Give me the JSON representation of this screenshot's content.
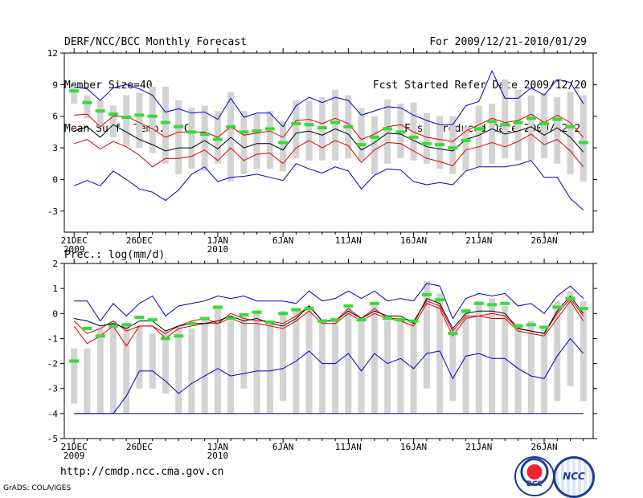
{
  "header": {
    "title": "DERF/NCC/BCC Monthly Forecast",
    "member_size": "Member Size=40",
    "variable": "Mean Surf. Temp.: °C",
    "period": "For 2009/12/21-2010/01/29",
    "started": "Fcst Started Refer Date 2009/12/20",
    "produced": "Fcst Produced Date 2009/12/21"
  },
  "footer": {
    "url": "http://cmdp.ncc.cma.gov.cn",
    "grads": "GrADS: COLA/IGES",
    "logo_bcc": "BCC",
    "logo_ncc": "NCC"
  },
  "colors": {
    "mean": "#000000",
    "spread": "#e00000",
    "extreme": "#0000cc",
    "box": "#d3d3d3",
    "median": "#33dd33",
    "hline": "#000080"
  },
  "chart_data": [
    {
      "type": "line",
      "name": "temperature",
      "title": "Mean Surf. Temp.: °C",
      "ylabel": "°C",
      "ylim": [
        -5,
        12
      ],
      "yticks": [
        -3,
        0,
        3,
        6,
        9,
        12
      ],
      "xlabels": [
        {
          "day": 1,
          "lines": [
            "21DEC",
            "2009"
          ]
        },
        {
          "day": 6,
          "lines": [
            "26DEC"
          ]
        },
        {
          "day": 12,
          "lines": [
            "1JAN",
            "2010"
          ]
        },
        {
          "day": 17,
          "lines": [
            "6JAN"
          ]
        },
        {
          "day": 22,
          "lines": [
            "11JAN"
          ]
        },
        {
          "day": 27,
          "lines": [
            "16JAN"
          ]
        },
        {
          "day": 32,
          "lines": [
            "21JAN"
          ]
        },
        {
          "day": 37,
          "lines": [
            "26JAN"
          ]
        }
      ],
      "days": 40,
      "box_low": [
        7.2,
        5.8,
        5.0,
        4.0,
        3.2,
        3.0,
        2.5,
        1.5,
        0.5,
        1.0,
        0.8,
        1.5,
        -0.2,
        0.5,
        1.0,
        1.0,
        0.8,
        2.0,
        1.8,
        1.8,
        1.8,
        2.0,
        1.8,
        0.5,
        1.5,
        2.0,
        1.8,
        1.5,
        1.0,
        0.5,
        0.8,
        1.2,
        1.5,
        2.0,
        1.8,
        1.8,
        2.0,
        1.5,
        0.5,
        -0.2
      ],
      "box_high": [
        8.8,
        8.0,
        7.5,
        7.0,
        8.0,
        8.2,
        8.8,
        8.8,
        7.5,
        6.8,
        7.0,
        6.5,
        8.3,
        6.5,
        6.2,
        6.5,
        5.5,
        7.5,
        7.5,
        7.8,
        8.5,
        8.0,
        6.8,
        6.0,
        7.6,
        7.2,
        7.3,
        6.3,
        6.0,
        6.0,
        5.0,
        7.0,
        7.2,
        9.5,
        8.5,
        8.0,
        8.2,
        7.8,
        8.3,
        8.0
      ],
      "median": [
        8.4,
        7.3,
        6.5,
        6.2,
        5.9,
        6.1,
        6.0,
        5.4,
        5.0,
        4.5,
        4.3,
        3.8,
        5.0,
        4.5,
        4.6,
        4.8,
        3.5,
        5.3,
        5.2,
        4.9,
        5.4,
        5.0,
        3.3,
        4.0,
        4.8,
        4.5,
        4.0,
        3.4,
        3.3,
        3.0,
        3.7,
        4.8,
        5.5,
        5.2,
        5.4,
        5.8,
        5.3,
        5.7,
        5.0,
        3.5
      ],
      "mean": [
        4.6,
        5.0,
        4.0,
        5.2,
        4.5,
        3.8,
        3.3,
        2.7,
        3.0,
        3.0,
        3.7,
        2.9,
        4.0,
        3.0,
        3.4,
        3.4,
        2.8,
        4.4,
        4.6,
        4.2,
        4.8,
        4.3,
        2.8,
        3.5,
        4.4,
        4.3,
        3.7,
        3.1,
        2.9,
        2.7,
        3.8,
        4.2,
        4.8,
        4.3,
        4.6,
        5.0,
        4.2,
        4.9,
        4.0,
        2.6
      ],
      "upper": [
        6.1,
        6.2,
        5.0,
        6.0,
        6.0,
        5.4,
        4.8,
        4.0,
        4.5,
        4.5,
        4.5,
        4.0,
        5.0,
        4.2,
        4.4,
        4.6,
        4.0,
        5.6,
        5.7,
        5.3,
        5.8,
        5.3,
        3.8,
        4.3,
        5.0,
        5.2,
        4.5,
        4.0,
        3.8,
        3.6,
        4.6,
        5.2,
        5.8,
        5.4,
        5.6,
        6.2,
        5.4,
        6.1,
        5.4,
        4.0
      ],
      "lower": [
        3.4,
        3.8,
        2.9,
        3.6,
        3.1,
        2.3,
        1.2,
        2.0,
        2.0,
        2.2,
        2.8,
        1.8,
        3.0,
        1.8,
        2.4,
        2.5,
        1.5,
        3.0,
        3.7,
        3.0,
        3.7,
        3.2,
        1.6,
        2.8,
        3.5,
        3.4,
        2.7,
        2.0,
        1.7,
        1.3,
        2.8,
        3.1,
        3.5,
        3.1,
        3.6,
        4.3,
        3.3,
        3.8,
        2.7,
        1.2
      ],
      "max": [
        8.8,
        8.6,
        7.5,
        8.7,
        9.0,
        8.6,
        8.0,
        6.4,
        6.7,
        6.3,
        6.4,
        5.7,
        7.7,
        5.9,
        6.3,
        6.3,
        5.0,
        7.0,
        7.8,
        7.3,
        7.8,
        7.5,
        6.1,
        6.5,
        6.9,
        6.8,
        6.1,
        5.6,
        5.2,
        5.2,
        7.0,
        7.4,
        10.3,
        7.7,
        7.7,
        8.7,
        8.0,
        9.5,
        9.2,
        7.2
      ],
      "min": [
        -0.6,
        -0.1,
        -0.6,
        0.8,
        0.0,
        -0.9,
        -1.2,
        -2.0,
        -1.0,
        0.5,
        1.2,
        -0.2,
        0.2,
        0.3,
        0.5,
        0.2,
        -0.1,
        1.5,
        1.0,
        0.6,
        1.2,
        0.8,
        -0.9,
        0.4,
        1.0,
        0.9,
        -0.2,
        -0.5,
        -0.3,
        -0.5,
        0.8,
        1.2,
        1.2,
        1.2,
        1.4,
        1.8,
        0.2,
        0.2,
        -1.8,
        -2.9
      ]
    },
    {
      "type": "line",
      "name": "precipitation",
      "title": "Prec.: log(mm/d)",
      "ylabel": "log(mm/d)",
      "ylim": [
        -5,
        2
      ],
      "yticks": [
        -5,
        -4,
        -3,
        -2,
        -1,
        0,
        1,
        2
      ],
      "xlabels": [
        {
          "day": 1,
          "lines": [
            "21DEC",
            "2009"
          ]
        },
        {
          "day": 6,
          "lines": [
            "26DEC"
          ]
        },
        {
          "day": 12,
          "lines": [
            "1JAN",
            "2010"
          ]
        },
        {
          "day": 17,
          "lines": [
            "6JAN"
          ]
        },
        {
          "day": 22,
          "lines": [
            "11JAN"
          ]
        },
        {
          "day": 27,
          "lines": [
            "16JAN"
          ]
        },
        {
          "day": 32,
          "lines": [
            "21JAN"
          ]
        },
        {
          "day": 37,
          "lines": [
            "26JAN"
          ]
        }
      ],
      "days": 40,
      "baseline": -4,
      "box_low": [
        -3.6,
        -4.0,
        -4.0,
        -4.0,
        -4.0,
        -3.0,
        -3.0,
        -3.2,
        -4.0,
        -4.0,
        -4.0,
        -4.0,
        -4.0,
        -3.0,
        -4.0,
        -4.0,
        -3.5,
        -4.0,
        -4.0,
        -4.0,
        -4.0,
        -4.0,
        -4.0,
        -4.0,
        -4.0,
        -4.0,
        -4.0,
        -3.0,
        -4.0,
        -3.5,
        -4.0,
        -4.0,
        -4.0,
        -4.0,
        -4.0,
        -4.0,
        -4.0,
        -3.5,
        -2.9,
        -3.5
      ],
      "box_high": [
        -1.4,
        -1.4,
        -0.6,
        -0.3,
        -0.4,
        -0.5,
        -0.8,
        -0.7,
        -0.5,
        -0.6,
        -0.2,
        0.3,
        -0.3,
        0.0,
        0.1,
        -0.4,
        0.1,
        0.2,
        0.3,
        -0.3,
        -0.3,
        0.3,
        -0.2,
        0.4,
        -0.3,
        -0.3,
        -0.3,
        1.3,
        0.8,
        -0.6,
        0.2,
        0.5,
        0.6,
        0.3,
        -0.4,
        -0.3,
        -0.5,
        0.5,
        0.9,
        0.5
      ],
      "median": [
        -1.9,
        -0.6,
        -0.9,
        -0.5,
        -0.45,
        -0.15,
        -0.25,
        -1.0,
        -0.9,
        -0.4,
        -0.2,
        0.25,
        -0.2,
        -0.05,
        0.05,
        -0.35,
        0.0,
        0.15,
        0.2,
        -0.3,
        -0.25,
        0.3,
        -0.25,
        0.4,
        -0.2,
        -0.25,
        -0.3,
        0.75,
        0.55,
        -0.8,
        0.1,
        0.4,
        0.35,
        0.4,
        -0.5,
        -0.45,
        -0.55,
        0.25,
        0.6,
        0.2
      ],
      "mean": [
        -0.2,
        -0.3,
        -0.5,
        -0.4,
        -0.6,
        -0.3,
        -0.3,
        -0.7,
        -0.5,
        -0.4,
        -0.4,
        -0.3,
        -0.1,
        -0.3,
        -0.2,
        -0.4,
        -0.5,
        -0.2,
        0.3,
        -0.3,
        -0.3,
        0.1,
        -0.2,
        0.1,
        -0.1,
        -0.1,
        -0.4,
        0.6,
        0.4,
        -0.6,
        0.0,
        0.1,
        0.1,
        0.0,
        -0.6,
        -0.7,
        -0.8,
        0.1,
        0.7,
        0.0
      ],
      "upper": [
        -0.3,
        -0.8,
        -0.6,
        -0.3,
        -0.7,
        -0.5,
        -0.5,
        -0.8,
        -0.5,
        -0.3,
        -0.2,
        -0.4,
        0.0,
        -0.2,
        -0.3,
        -0.3,
        -0.4,
        -0.1,
        0.3,
        -0.3,
        -0.3,
        0.2,
        -0.2,
        0.2,
        -0.2,
        -0.2,
        -0.3,
        0.5,
        0.3,
        -0.7,
        -0.1,
        -0.1,
        0.0,
        -0.1,
        -0.6,
        -0.7,
        -0.8,
        0.0,
        0.6,
        -0.1
      ],
      "lower": [
        -0.5,
        -1.2,
        -0.9,
        -0.5,
        -1.3,
        -0.5,
        -0.5,
        -1.0,
        -0.6,
        -0.5,
        -0.4,
        -0.4,
        -0.2,
        -0.4,
        -0.4,
        -0.5,
        -0.6,
        -0.3,
        0.1,
        -0.4,
        -0.4,
        0.0,
        -0.3,
        0.0,
        -0.2,
        -0.3,
        -0.5,
        0.4,
        0.2,
        -0.9,
        -0.2,
        -0.1,
        -0.2,
        -0.2,
        -0.7,
        -0.8,
        -0.9,
        -0.2,
        0.5,
        -0.3
      ],
      "max": [
        0.5,
        0.5,
        -0.3,
        0.4,
        -0.1,
        0.4,
        0.7,
        -0.1,
        0.3,
        0.4,
        0.5,
        0.7,
        0.6,
        0.7,
        0.5,
        0.5,
        0.5,
        0.4,
        0.9,
        0.5,
        0.6,
        0.9,
        0.6,
        0.9,
        0.5,
        0.6,
        0.5,
        1.2,
        1.1,
        -0.2,
        0.6,
        0.8,
        0.7,
        0.8,
        0.3,
        0.4,
        0.0,
        0.7,
        1.1,
        0.6
      ],
      "min": [
        -4.0,
        -4.0,
        -4.0,
        -4.0,
        -3.3,
        -2.3,
        -2.3,
        -2.7,
        -3.2,
        -2.8,
        -2.5,
        -2.2,
        -2.5,
        -2.4,
        -2.3,
        -2.3,
        -2.2,
        -1.9,
        -1.5,
        -2.0,
        -2.0,
        -1.6,
        -2.3,
        -1.6,
        -2.0,
        -1.8,
        -2.2,
        -1.6,
        -1.5,
        -2.6,
        -1.7,
        -1.6,
        -1.8,
        -1.8,
        -2.2,
        -2.5,
        -2.6,
        -1.7,
        -1.0,
        -1.6
      ]
    }
  ]
}
